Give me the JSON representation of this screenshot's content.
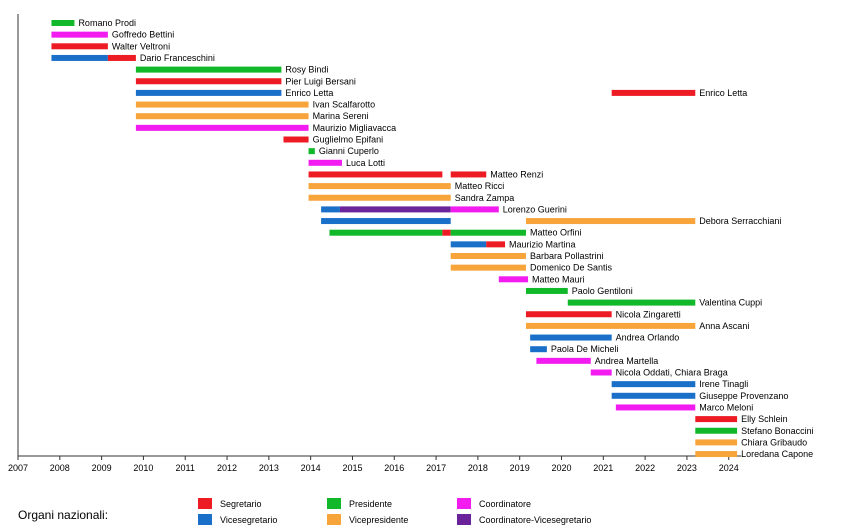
{
  "chart_data": {
    "type": "timeline",
    "x_ticks": [
      2007,
      2008,
      2009,
      2010,
      2011,
      2012,
      2013,
      2014,
      2015,
      2016,
      2017,
      2018,
      2019,
      2020,
      2021,
      2022,
      2023,
      2024
    ],
    "xlim": [
      2007.0,
      2024.7
    ],
    "colors": {
      "Segretario": "#ed1c24",
      "Vicesegretario": "#1a6fc9",
      "Presidente": "#11b82a",
      "Vicepresidente": "#f7a43a",
      "Coordinatore": "#f21cf0",
      "Coordinatore-Vicesegretario": "#6a239a"
    },
    "rows": [
      {
        "label": "Romano Prodi",
        "segments": [
          {
            "role": "Presidente",
            "start": 2007.8,
            "end": 2008.35
          }
        ]
      },
      {
        "label": "Goffredo Bettini",
        "segments": [
          {
            "role": "Coordinatore",
            "start": 2007.8,
            "end": 2009.15
          }
        ]
      },
      {
        "label": "Walter Veltroni",
        "segments": [
          {
            "role": "Segretario",
            "start": 2007.8,
            "end": 2009.15
          }
        ]
      },
      {
        "label": "Dario Franceschini",
        "segments": [
          {
            "role": "Vicesegretario",
            "start": 2007.8,
            "end": 2009.15
          },
          {
            "role": "Segretario",
            "start": 2009.15,
            "end": 2009.82
          }
        ]
      },
      {
        "label": "Rosy Bindi",
        "segments": [
          {
            "role": "Presidente",
            "start": 2009.82,
            "end": 2013.3
          }
        ]
      },
      {
        "label": "Pier Luigi Bersani",
        "segments": [
          {
            "role": "Segretario",
            "start": 2009.82,
            "end": 2013.3
          }
        ]
      },
      {
        "label": "Enrico Letta",
        "segments": [
          {
            "role": "Vicesegretario",
            "start": 2009.82,
            "end": 2013.3
          },
          {
            "role": "Segretario",
            "start": 2021.2,
            "end": 2023.2
          }
        ],
        "label2": "Enrico Letta"
      },
      {
        "label": "Ivan Scalfarotto",
        "segments": [
          {
            "role": "Vicepresidente",
            "start": 2009.82,
            "end": 2013.95
          }
        ]
      },
      {
        "label": "Marina Sereni",
        "segments": [
          {
            "role": "Vicepresidente",
            "start": 2009.82,
            "end": 2013.95
          }
        ]
      },
      {
        "label": "Maurizio Migliavacca",
        "segments": [
          {
            "role": "Coordinatore",
            "start": 2009.82,
            "end": 2013.95
          }
        ]
      },
      {
        "label": "Guglielmo Epifani",
        "segments": [
          {
            "role": "Segretario",
            "start": 2013.35,
            "end": 2013.95
          }
        ]
      },
      {
        "label": "Gianni Cuperlo",
        "segments": [
          {
            "role": "Presidente",
            "start": 2013.95,
            "end": 2014.1
          }
        ]
      },
      {
        "label": "Luca Lotti",
        "segments": [
          {
            "role": "Coordinatore",
            "start": 2013.95,
            "end": 2014.75
          }
        ]
      },
      {
        "label": "Matteo Renzi",
        "segments": [
          {
            "role": "Segretario",
            "start": 2013.95,
            "end": 2017.15
          },
          {
            "role": "Segretario",
            "start": 2017.35,
            "end": 2018.2
          }
        ]
      },
      {
        "label": "Matteo Ricci",
        "segments": [
          {
            "role": "Vicepresidente",
            "start": 2013.95,
            "end": 2017.35
          }
        ]
      },
      {
        "label": "Sandra Zampa",
        "segments": [
          {
            "role": "Vicepresidente",
            "start": 2013.95,
            "end": 2017.35
          }
        ]
      },
      {
        "label": "Lorenzo Guerini",
        "segments": [
          {
            "role": "Vicesegretario",
            "start": 2014.25,
            "end": 2014.7
          },
          {
            "role": "Coordinatore-Vicesegretario",
            "start": 2014.7,
            "end": 2017.35
          },
          {
            "role": "Coordinatore",
            "start": 2017.35,
            "end": 2018.5
          }
        ]
      },
      {
        "label": "Debora Serracchiani",
        "segments": [
          {
            "role": "Vicesegretario",
            "start": 2014.25,
            "end": 2017.35
          },
          {
            "role": "Vicepresidente",
            "start": 2019.15,
            "end": 2023.2
          }
        ]
      },
      {
        "label": "Matteo Orfini",
        "segments": [
          {
            "role": "Presidente",
            "start": 2014.45,
            "end": 2017.15
          },
          {
            "role": "Segretario",
            "start": 2017.15,
            "end": 2017.35
          },
          {
            "role": "Presidente",
            "start": 2017.35,
            "end": 2019.15
          }
        ]
      },
      {
        "label": "Maurizio Martina",
        "segments": [
          {
            "role": "Vicesegretario",
            "start": 2017.35,
            "end": 2018.2
          },
          {
            "role": "Segretario",
            "start": 2018.2,
            "end": 2018.65
          }
        ]
      },
      {
        "label": "Barbara Pollastrini",
        "segments": [
          {
            "role": "Vicepresidente",
            "start": 2017.35,
            "end": 2019.15
          }
        ]
      },
      {
        "label": "Domenico De Santis",
        "segments": [
          {
            "role": "Vicepresidente",
            "start": 2017.35,
            "end": 2019.15
          }
        ]
      },
      {
        "label": "Matteo Mauri",
        "segments": [
          {
            "role": "Coordinatore",
            "start": 2018.5,
            "end": 2019.2
          }
        ]
      },
      {
        "label": "Paolo Gentiloni",
        "segments": [
          {
            "role": "Presidente",
            "start": 2019.15,
            "end": 2020.15
          }
        ]
      },
      {
        "label": "Valentina Cuppi",
        "segments": [
          {
            "role": "Presidente",
            "start": 2020.15,
            "end": 2023.2
          }
        ]
      },
      {
        "label": "Nicola Zingaretti",
        "segments": [
          {
            "role": "Segretario",
            "start": 2019.15,
            "end": 2021.2
          }
        ]
      },
      {
        "label": "Anna Ascani",
        "segments": [
          {
            "role": "Vicepresidente",
            "start": 2019.15,
            "end": 2023.2
          }
        ]
      },
      {
        "label": "Andrea Orlando",
        "segments": [
          {
            "role": "Vicesegretario",
            "start": 2019.25,
            "end": 2021.2
          }
        ]
      },
      {
        "label": "Paola De Micheli",
        "segments": [
          {
            "role": "Vicesegretario",
            "start": 2019.25,
            "end": 2019.65
          }
        ]
      },
      {
        "label": "Andrea Martella",
        "segments": [
          {
            "role": "Coordinatore",
            "start": 2019.4,
            "end": 2020.7
          }
        ]
      },
      {
        "label": "Nicola Oddati, Chiara Braga",
        "segments": [
          {
            "role": "Coordinatore",
            "start": 2020.7,
            "end": 2021.2
          }
        ]
      },
      {
        "label": "Irene Tinagli",
        "segments": [
          {
            "role": "Vicesegretario",
            "start": 2021.2,
            "end": 2023.2
          }
        ]
      },
      {
        "label": "Giuseppe Provenzano",
        "segments": [
          {
            "role": "Vicesegretario",
            "start": 2021.2,
            "end": 2023.2
          }
        ]
      },
      {
        "label": "Marco Meloni",
        "segments": [
          {
            "role": "Coordinatore",
            "start": 2021.3,
            "end": 2023.2
          }
        ]
      },
      {
        "label": "Elly Schlein",
        "segments": [
          {
            "role": "Segretario",
            "start": 2023.2,
            "end": 2024.2
          }
        ]
      },
      {
        "label": "Stefano Bonaccini",
        "segments": [
          {
            "role": "Presidente",
            "start": 2023.2,
            "end": 2024.2
          }
        ]
      },
      {
        "label": "Chiara Gribaudo",
        "segments": [
          {
            "role": "Vicepresidente",
            "start": 2023.2,
            "end": 2024.2
          }
        ]
      },
      {
        "label": "Loredana Capone",
        "segments": [
          {
            "role": "Vicepresidente",
            "start": 2023.2,
            "end": 2024.2
          }
        ]
      }
    ]
  },
  "legend": {
    "title": "Organi nazionali:",
    "items": [
      {
        "key": "Segretario",
        "label": "Segretario",
        "color": "#ed1c24"
      },
      {
        "key": "Vicesegretario",
        "label": "Vicesegretario",
        "color": "#1a6fc9"
      },
      {
        "key": "Presidente",
        "label": "Presidente",
        "color": "#11b82a"
      },
      {
        "key": "Vicepresidente",
        "label": "Vicepresidente",
        "color": "#f7a43a"
      },
      {
        "key": "Coordinatore",
        "label": "Coordinatore",
        "color": "#f21cf0"
      },
      {
        "key": "Coordinatore-Vicesegretario",
        "label": "Coordinatore-Vicesegretario",
        "color": "#6a239a"
      }
    ]
  }
}
